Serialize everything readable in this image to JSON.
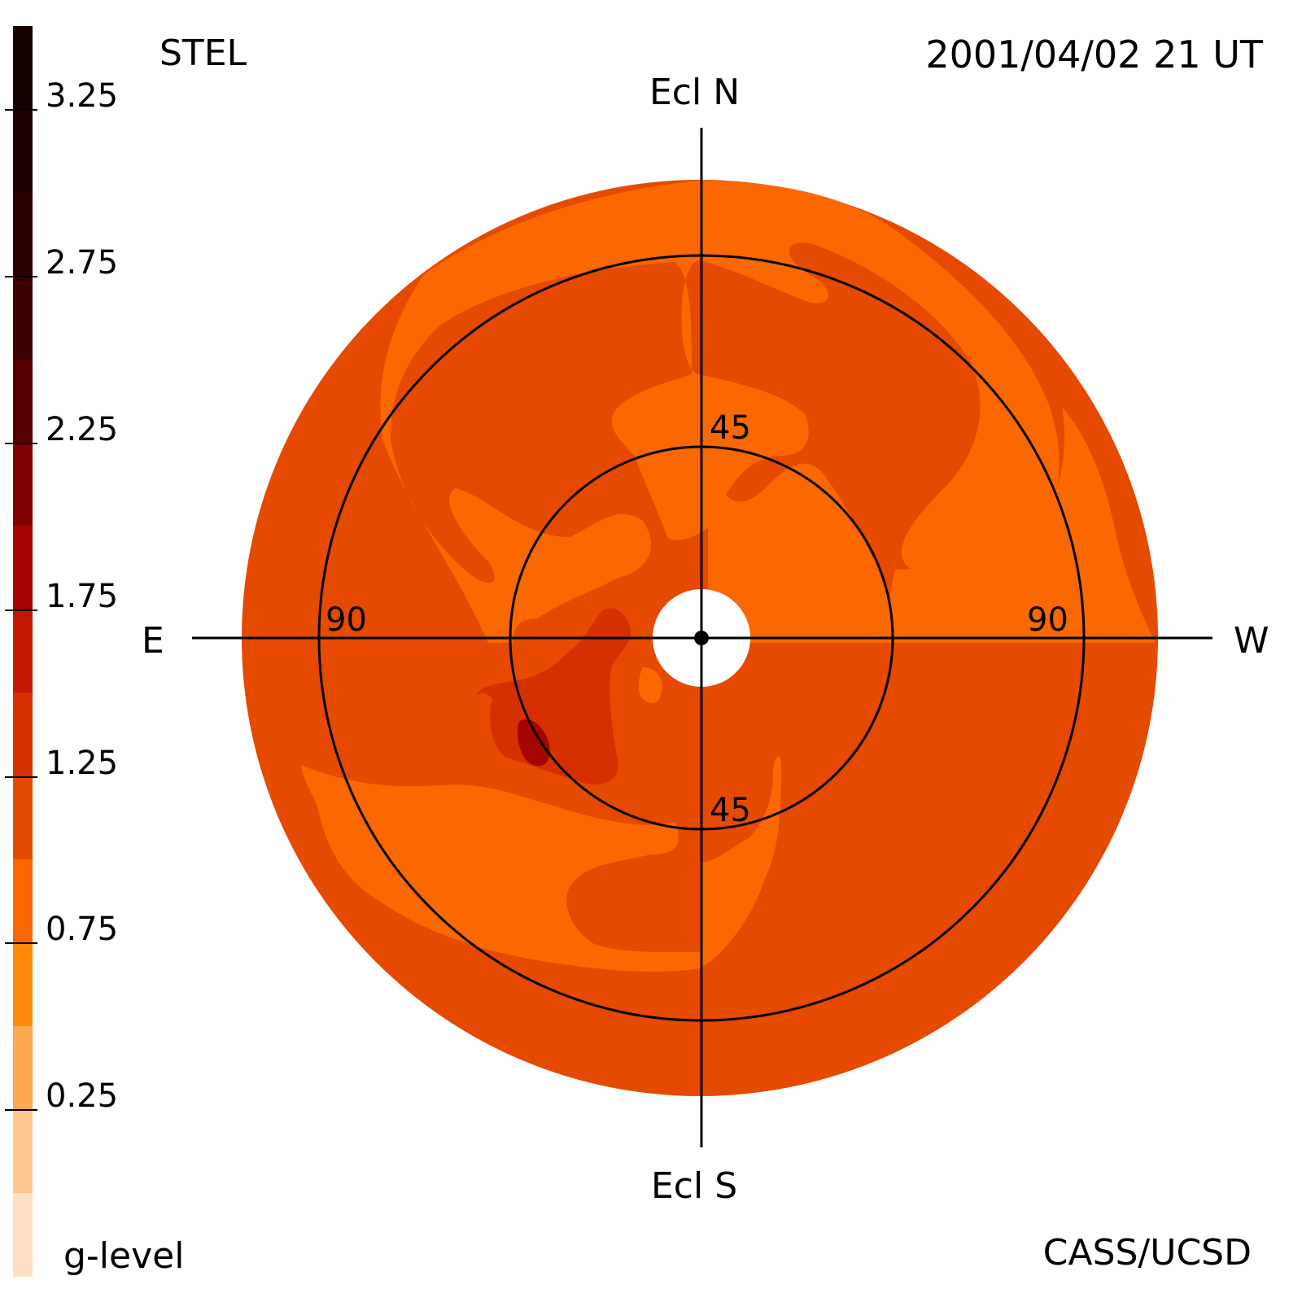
{
  "header": {
    "left_title": "STEL",
    "right_title": "2001/04/02 21 UT"
  },
  "footer": {
    "colorbar_caption": "g-level",
    "credit": "CASS/UCSD"
  },
  "directions": {
    "north": "Ecl N",
    "south": "Ecl S",
    "east": "E",
    "west": "W"
  },
  "ring_labels": {
    "inner_top": "45",
    "inner_bottom": "45",
    "outer_left": "90",
    "outer_right": "90"
  },
  "colorbar": {
    "tick_labels": [
      "3.25",
      "2.75",
      "2.25",
      "1.75",
      "1.25",
      "0.75",
      "0.25"
    ],
    "segments": [
      {
        "level_from": 3.25,
        "level_to": 3.5,
        "color": "#150000"
      },
      {
        "level_from": 3.0,
        "level_to": 3.25,
        "color": "#1f0000"
      },
      {
        "level_from": 2.75,
        "level_to": 3.0,
        "color": "#2c0000"
      },
      {
        "level_from": 2.5,
        "level_to": 2.75,
        "color": "#3a0000"
      },
      {
        "level_from": 2.25,
        "level_to": 2.5,
        "color": "#560000"
      },
      {
        "level_from": 2.0,
        "level_to": 2.25,
        "color": "#820000"
      },
      {
        "level_from": 1.75,
        "level_to": 2.0,
        "color": "#a40500"
      },
      {
        "level_from": 1.5,
        "level_to": 1.75,
        "color": "#c41700"
      },
      {
        "level_from": 1.25,
        "level_to": 1.5,
        "color": "#d53000"
      },
      {
        "level_from": 1.0,
        "level_to": 1.25,
        "color": "#e54a00"
      },
      {
        "level_from": 0.75,
        "level_to": 1.0,
        "color": "#fb6800"
      },
      {
        "level_from": 0.5,
        "level_to": 0.75,
        "color": "#ff8a0a"
      },
      {
        "level_from": 0.25,
        "level_to": 0.5,
        "color": "#ffa850"
      },
      {
        "level_from": 0.0,
        "level_to": 0.25,
        "color": "#ffc690"
      },
      {
        "level_from": -0.25,
        "level_to": 0.0,
        "color": "#ffe0c4"
      }
    ]
  },
  "map_colors": {
    "level_1_00_1_25": "#e54a00",
    "level_0_75_1_00": "#fb6800",
    "level_1_25_1_50": "#d53000",
    "level_1_75_2_00": "#a40500",
    "occulter": "#ffffff",
    "lines": "#000000"
  }
}
